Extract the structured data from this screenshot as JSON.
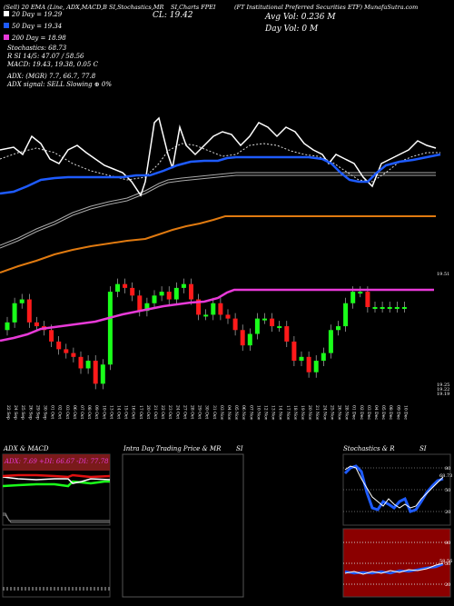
{
  "header": {
    "top_line": "(Sell) 20 EMA (Line, ADX,MACD,B",
    "top_line2": "SI,Stochastics,MR",
    "top_line3": "SI,Charts FPEI",
    "top_line4": "(FT Institutional Preferred Securities ETF) MunafaSutra.com",
    "close": "CL: 19.42",
    "avg_vol": "Avg Vol: 0.236  M",
    "day_vol": "Day Vol: 0  M"
  },
  "legend": {
    "ema20": "20 Day = 19.29",
    "ema50": "50 Day = 19.34",
    "ema200": "200 Day = 18.98",
    "stochastics": "Stochastics: 68.73",
    "rsi": "R  SI 14/5: 47.07 / 58.56",
    "macd": "MACD: 19.43,  19.38,  0.05 C",
    "adx": "ADX:                    (MGR) 7.7, 66.7,  77.8",
    "adx_signal": "ADX  signal: SELL  Slowing ⊕ 0%"
  },
  "price_labels": {
    "p1": "19.51",
    "p2": "19.25",
    "p3": "19.22",
    "p4": "19.19"
  },
  "bottom_panels": {
    "adx_title": "ADX  & MACD",
    "adx_values": "ADX: 7.69  +DI: 66.67  -DI: 77.78",
    "intra_title": "Intra  Day Trading Price  & MR",
    "intra_title2": "SI",
    "stoch_title": "Stochastics & R",
    "stoch_title2": "SI",
    "stoch_ticks": [
      "80",
      "50",
      "20"
    ],
    "rsi_ticks": [
      "80",
      "50",
      "20"
    ],
    "stoch_value": "68.73",
    "rsi_value": "58.56"
  },
  "chart_data": {
    "type": "candlestick",
    "dates": [
      "22 Sep",
      "24 Sep",
      "25 Sep",
      "26 Sep",
      "29 Sep",
      "30 Sep",
      "01 Oct",
      "02 Oct",
      "03 Oct",
      "06 Oct",
      "07 Oct",
      "08 Oct",
      "09 Oct",
      "10 Oct",
      "13 Oct",
      "14 Oct",
      "15 Oct",
      "16 Oct",
      "17 Oct",
      "20 Oct",
      "21 Oct",
      "22 Oct",
      "23 Oct",
      "24 Oct",
      "27 Oct",
      "28 Oct",
      "29 Oct",
      "30 Oct",
      "31 Oct",
      "03 Nov",
      "04 Nov",
      "05 Nov",
      "06 Nov",
      "07 Nov",
      "10 Nov",
      "12 Nov",
      "13 Nov",
      "14 Nov",
      "17 Nov",
      "18 Nov",
      "19 Nov",
      "20 Nov",
      "21 Nov",
      "24 Nov",
      "25 Nov",
      "26 Nov",
      "28 Nov",
      "01 Dec",
      "02 Dec",
      "03 Dec",
      "04 Dec",
      "05 Dec",
      "08 Dec",
      "09 Dec",
      "10 Dec"
    ],
    "close": [
      19.38,
      19.43,
      19.44,
      19.38,
      19.37,
      19.36,
      19.33,
      19.31,
      19.3,
      19.29,
      19.26,
      19.28,
      19.22,
      19.27,
      19.46,
      19.48,
      19.47,
      19.45,
      19.41,
      19.43,
      19.45,
      19.46,
      19.44,
      19.47,
      19.48,
      19.44,
      19.4,
      19.4,
      19.43,
      19.4,
      19.39,
      19.36,
      19.32,
      19.35,
      19.39,
      19.39,
      19.37,
      19.37,
      19.33,
      19.28,
      19.29,
      19.25,
      19.28,
      19.3,
      19.36,
      19.37,
      19.43,
      19.46,
      19.46,
      19.42,
      19.42,
      19.42,
      19.42,
      19.42,
      19.42
    ],
    "moving_averages": {
      "ema20": 19.29,
      "ema50": 19.34,
      "ema200": 18.98
    },
    "ylim": [
      19.19,
      19.51
    ]
  }
}
